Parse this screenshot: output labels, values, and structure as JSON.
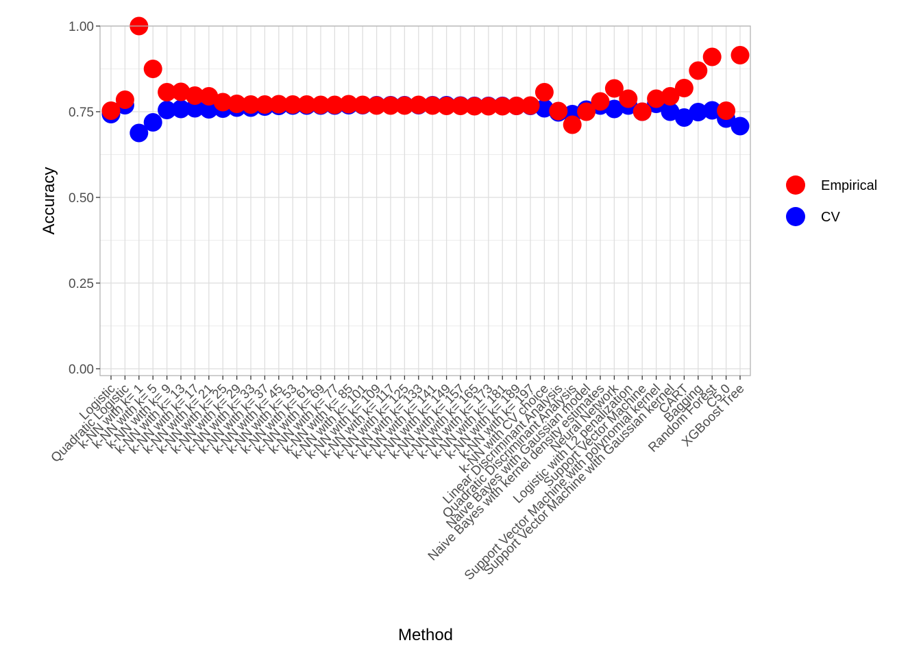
{
  "chart_data": {
    "type": "scatter",
    "title": "",
    "xlabel": "Method",
    "ylabel": "Accuracy",
    "ylim": [
      0,
      1
    ],
    "y_ticks": [
      "0.00",
      "0.25",
      "0.50",
      "0.75",
      "1.00"
    ],
    "y_tick_values": [
      0,
      0.25,
      0.5,
      0.75,
      1.0
    ],
    "grid": true,
    "legend_position": "right",
    "categories": [
      "Logistic",
      "Quadratic Logistic",
      "k-NN with k= 1",
      "k-NN with k= 5",
      "k-NN with k= 9",
      "k-NN with k= 13",
      "k-NN with k= 17",
      "k-NN with k= 21",
      "k-NN with k= 25",
      "k-NN with k= 29",
      "k-NN with k= 33",
      "k-NN with k= 37",
      "k-NN with k= 45",
      "k-NN with k= 53",
      "k-NN with k= 61",
      "k-NN with k= 69",
      "k-NN with k= 77",
      "k-NN with k= 85",
      "k-NN with k= 101",
      "k-NN with k= 109",
      "k-NN with k= 117",
      "k-NN with k= 125",
      "k-NN with k= 133",
      "k-NN with k= 141",
      "k-NN with k= 149",
      "k-NN with k= 157",
      "k-NN with k= 165",
      "k-NN with k= 173",
      "k-NN with k= 181",
      "k-NN with k= 189",
      "k-NN with k= 197",
      "k-NN with CV choice",
      "Linear Discriminant Analysis",
      "Quadratic Discriminant Analysis",
      "Naive Bayes with Gaussian model",
      "Naive Bayes with kernel density estimates",
      "Neural Network",
      "Logistic with L2 penalization",
      "Support Vector Machine",
      "Support Vector Machine with polynomial kernel",
      "Support Vector Machine with Gaussian kernel",
      "CART",
      "Bagging",
      "Random Forest",
      "C5.0",
      "XGBoost Tree"
    ],
    "series": [
      {
        "name": "CV",
        "color": "#0000ff",
        "values": [
          0.743,
          0.769,
          0.688,
          0.719,
          0.755,
          0.758,
          0.76,
          0.757,
          0.759,
          0.762,
          0.762,
          0.765,
          0.767,
          0.768,
          0.768,
          0.768,
          0.768,
          0.769,
          0.769,
          0.769,
          0.769,
          0.769,
          0.769,
          0.769,
          0.769,
          0.768,
          0.767,
          0.767,
          0.767,
          0.767,
          0.767,
          0.76,
          0.748,
          0.743,
          0.756,
          0.768,
          0.758,
          0.768,
          0.75,
          0.773,
          0.75,
          0.733,
          0.749,
          0.754,
          0.73,
          0.708
        ]
      },
      {
        "name": "Empirical",
        "color": "#ff0000",
        "values": [
          0.753,
          0.785,
          1.0,
          0.875,
          0.807,
          0.808,
          0.797,
          0.795,
          0.778,
          0.773,
          0.771,
          0.771,
          0.772,
          0.771,
          0.771,
          0.77,
          0.77,
          0.772,
          0.77,
          0.768,
          0.768,
          0.768,
          0.77,
          0.768,
          0.767,
          0.767,
          0.766,
          0.766,
          0.766,
          0.767,
          0.768,
          0.807,
          0.752,
          0.712,
          0.75,
          0.78,
          0.818,
          0.788,
          0.75,
          0.788,
          0.795,
          0.819,
          0.87,
          0.91,
          0.753,
          0.915
        ]
      }
    ],
    "legend": [
      {
        "name": "Empirical",
        "color": "#ff0000"
      },
      {
        "name": "CV",
        "color": "#0000ff"
      }
    ]
  }
}
